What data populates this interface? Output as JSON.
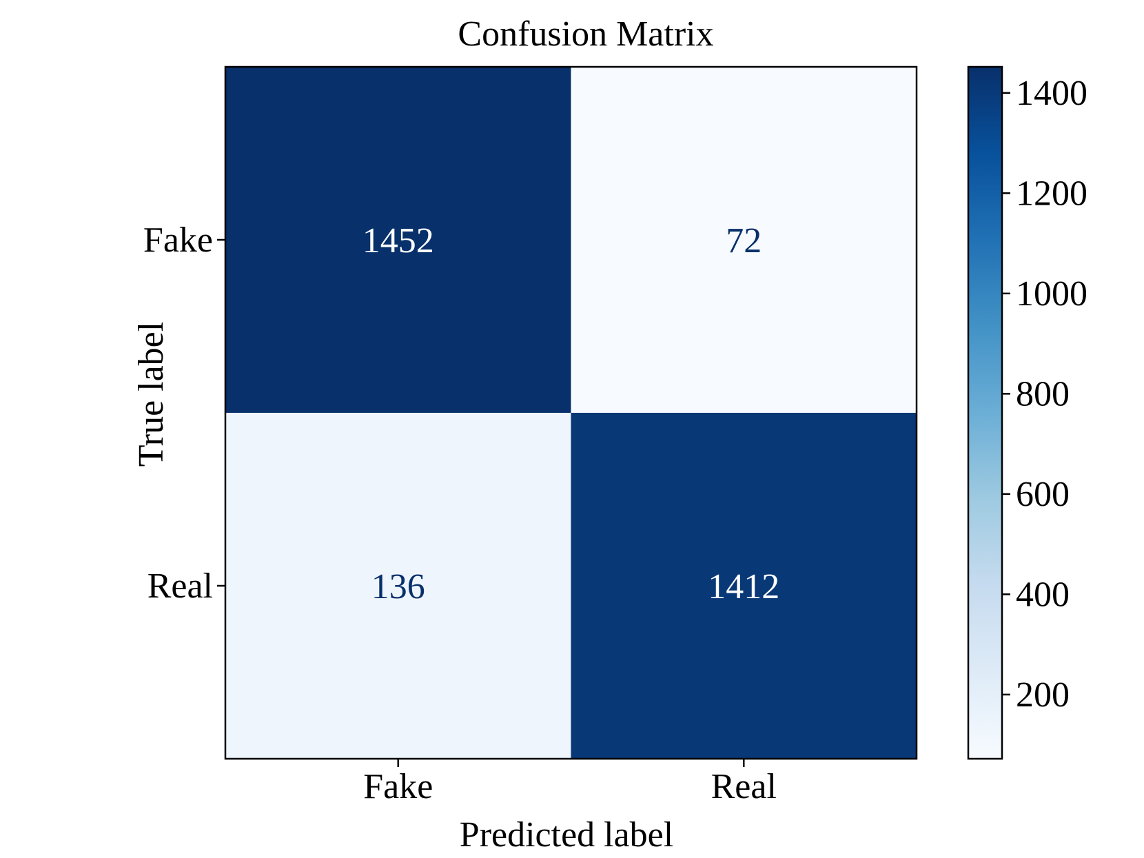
{
  "chart_data": {
    "type": "heatmap",
    "title": "Confusion Matrix",
    "xlabel": "Predicted label",
    "ylabel": "True label",
    "x_categories": [
      "Fake",
      "Real"
    ],
    "y_categories": [
      "Fake",
      "Real"
    ],
    "values": [
      [
        1452,
        72
      ],
      [
        136,
        1412
      ]
    ],
    "colormap": "Blues",
    "colorbar": {
      "range": [
        72,
        1452
      ],
      "ticks": [
        200,
        400,
        600,
        800,
        1000,
        1200,
        1400
      ]
    }
  }
}
